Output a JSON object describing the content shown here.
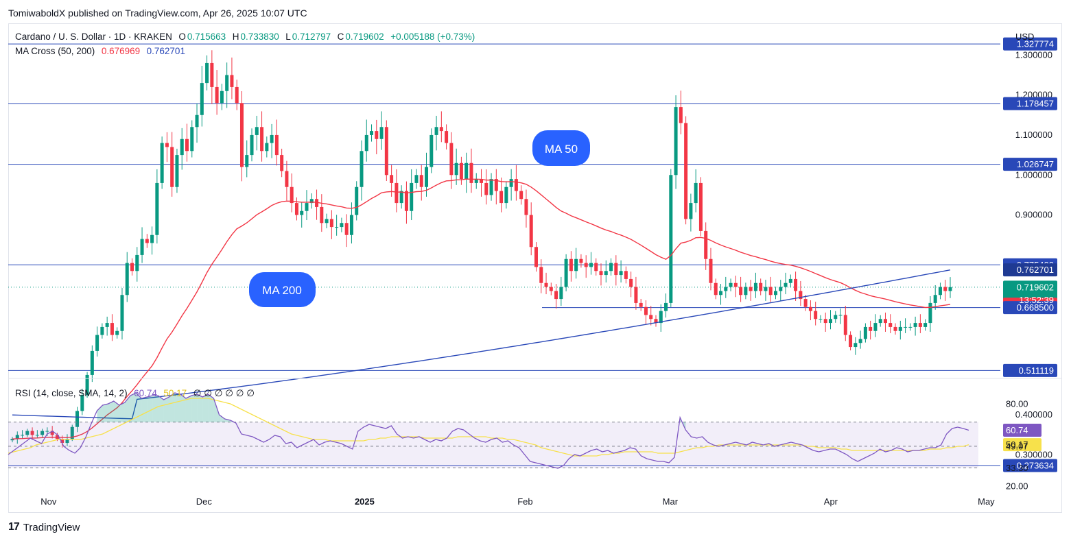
{
  "header": {
    "published": "TomiwaboldX published on TradingView.com, Apr 26, 2025 10:07 UTC"
  },
  "legend": {
    "symbol": "Cardano / U. S. Dollar · 1D · KRAKEN",
    "o_label": "O",
    "o": "0.715663",
    "h_label": "H",
    "h": "0.733830",
    "l_label": "L",
    "l": "0.712797",
    "c_label": "C",
    "c": "0.719602",
    "change": "+0.005188 (+0.73%)",
    "ma_label": "MA Cross (50, 200)",
    "ma50": "0.676969",
    "ma200": "0.762701"
  },
  "rsi_legend": {
    "label": "RSI (14, close, SMA, 14, 2)",
    "rsi": "60.74",
    "sma": "50.17",
    "empties": [
      "∅",
      "∅",
      "∅",
      "∅",
      "∅",
      "∅",
      "∅",
      "∅",
      "∅",
      "∅",
      "∅",
      "∅",
      "∅",
      "∅",
      "∅"
    ]
  },
  "currency": "USD",
  "annotations": {
    "ma50": "MA 50",
    "ma200": "MA 200"
  },
  "countdown": "13:52:39",
  "brand": {
    "mark": "17",
    "name": "TradingView"
  },
  "colors": {
    "up": "#089981",
    "down": "#f23645",
    "ma50": "#f23645",
    "ma200": "#2948b8",
    "hline": "#2948b8",
    "rsi": "#7e57c2",
    "rsi_sma": "#f7e14b",
    "badge": "#2962ff"
  },
  "chart_data": {
    "type": "candlestick",
    "y_ticks": [
      "1.300000",
      "1.200000",
      "1.100000",
      "1.000000",
      "0.900000",
      "0.400000",
      "0.300000"
    ],
    "y_tick_values": [
      1.3,
      1.2,
      1.1,
      1.0,
      0.9,
      0.4,
      0.3
    ],
    "price_labels": [
      {
        "text": "1.327774",
        "value": 1.327774,
        "bg": "#2948b8"
      },
      {
        "text": "1.178457",
        "value": 1.178457,
        "bg": "#2948b8"
      },
      {
        "text": "1.026747",
        "value": 1.026747,
        "bg": "#2948b8"
      },
      {
        "text": "0.775400",
        "value": 0.7754,
        "bg": "#2948b8"
      },
      {
        "text": "0.762701",
        "value": 0.762701,
        "bg": "#1f3a93"
      },
      {
        "text": "0.719602",
        "value": 0.719602,
        "bg": "#089981"
      },
      {
        "text": "0.676969",
        "value": 0.676969,
        "bg": "#f23645"
      },
      {
        "text": "0.668500",
        "value": 0.6685,
        "bg": "#2948b8"
      },
      {
        "text": "0.511119",
        "value": 0.511119,
        "bg": "#2948b8"
      },
      {
        "text": "0.273634",
        "value": 0.273634,
        "bg": "#2948b8"
      }
    ],
    "horizontal_levels": [
      1.327774,
      1.178457,
      1.026747,
      0.7754,
      0.511119,
      0.273634
    ],
    "partial_level": 0.6685,
    "x_labels": [
      "Nov",
      "Dec",
      "2025",
      "Feb",
      "Mar",
      "Apr",
      "May"
    ],
    "x_label_dates": [
      "2024-11-01",
      "2024-12-01",
      "2025-01-01",
      "2025-02-01",
      "2025-03-01",
      "2025-04-01",
      "2025-05-01"
    ],
    "date_range": [
      "2024-10-25",
      "2025-04-26"
    ],
    "closes": [
      0.34,
      0.35,
      0.35,
      0.36,
      0.35,
      0.35,
      0.36,
      0.36,
      0.35,
      0.34,
      0.33,
      0.34,
      0.37,
      0.41,
      0.45,
      0.5,
      0.56,
      0.6,
      0.62,
      0.63,
      0.6,
      0.61,
      0.7,
      0.78,
      0.76,
      0.8,
      0.84,
      0.83,
      0.85,
      0.98,
      1.08,
      1.07,
      0.97,
      1.05,
      1.09,
      1.06,
      1.12,
      1.15,
      1.23,
      1.28,
      1.22,
      1.18,
      1.21,
      1.25,
      1.22,
      1.18,
      1.02,
      1.05,
      1.1,
      1.12,
      1.06,
      1.08,
      1.1,
      1.05,
      1.01,
      0.97,
      0.93,
      0.9,
      0.91,
      0.93,
      0.94,
      0.92,
      0.88,
      0.89,
      0.87,
      0.87,
      0.88,
      0.85,
      0.9,
      0.97,
      1.06,
      1.1,
      1.11,
      1.09,
      1.12,
      1.0,
      0.98,
      0.93,
      0.96,
      0.91,
      0.98,
      1.0,
      0.97,
      1.02,
      1.1,
      1.12,
      1.11,
      1.08,
      1.0,
      1.03,
      0.99,
      1.03,
      0.98,
      0.99,
      0.98,
      0.95,
      0.99,
      0.96,
      0.93,
      0.97,
      0.99,
      0.96,
      0.94,
      0.9,
      0.82,
      0.77,
      0.73,
      0.72,
      0.71,
      0.69,
      0.72,
      0.79,
      0.76,
      0.79,
      0.78,
      0.77,
      0.78,
      0.76,
      0.75,
      0.76,
      0.78,
      0.75,
      0.76,
      0.74,
      0.72,
      0.68,
      0.67,
      0.65,
      0.64,
      0.63,
      0.66,
      0.68,
      1.0,
      1.17,
      1.13,
      0.89,
      0.93,
      0.98,
      0.86,
      0.79,
      0.73,
      0.7,
      0.71,
      0.72,
      0.73,
      0.72,
      0.7,
      0.72,
      0.71,
      0.73,
      0.71,
      0.72,
      0.7,
      0.71,
      0.72,
      0.73,
      0.74,
      0.71,
      0.69,
      0.67,
      0.66,
      0.64,
      0.64,
      0.63,
      0.64,
      0.65,
      0.65,
      0.6,
      0.57,
      0.58,
      0.59,
      0.62,
      0.61,
      0.63,
      0.64,
      0.63,
      0.62,
      0.61,
      0.62,
      0.62,
      0.62,
      0.63,
      0.62,
      0.63,
      0.68,
      0.7,
      0.72,
      0.71,
      0.719602
    ],
    "ma50_start": 0.34,
    "ma200": {
      "from": 0.4,
      "to": 0.762701
    },
    "rsi_panel": {
      "ticks": [
        "80.00",
        "60.74",
        "50.17",
        "49.07",
        "33.30",
        "20.00"
      ],
      "tick_values": [
        80,
        60.74,
        50.17,
        49.07,
        33.3,
        20
      ],
      "band": [
        33.3,
        66.7
      ],
      "mid": 49.07,
      "last_rsi": 60.74,
      "last_sma": 50.17,
      "rsi": [
        43,
        46,
        49,
        52,
        55,
        53,
        51,
        58,
        60,
        57,
        49,
        46,
        44,
        48,
        56,
        66,
        75,
        79,
        80,
        82,
        79,
        81,
        86,
        88,
        84,
        85,
        86,
        86,
        83,
        85,
        88,
        87,
        84,
        86,
        87,
        85,
        87,
        84,
        72,
        69,
        68,
        66,
        58,
        57,
        56,
        54,
        52,
        54,
        57,
        56,
        51,
        52,
        48,
        50,
        52,
        54,
        50,
        52,
        53,
        52,
        51,
        49,
        47,
        60,
        63,
        65,
        64,
        63,
        62,
        64,
        58,
        55,
        56,
        55,
        56,
        54,
        52,
        54,
        53,
        55,
        60,
        62,
        61,
        58,
        55,
        53,
        52,
        54,
        55,
        52,
        53,
        50,
        48,
        43,
        38,
        37,
        36,
        35,
        34,
        33,
        35,
        40,
        43,
        42,
        44,
        46,
        47,
        45,
        46,
        44,
        45,
        46,
        48,
        47,
        42,
        40,
        39,
        38,
        38,
        37,
        41,
        70,
        61,
        56,
        55,
        56,
        52,
        50,
        49,
        50,
        51,
        52,
        51,
        50,
        52,
        51,
        50,
        51,
        49,
        50,
        51,
        52,
        51,
        50,
        48,
        46,
        45,
        46,
        47,
        47,
        45,
        43,
        40,
        38,
        40,
        42,
        44,
        47,
        45,
        46,
        48,
        47,
        45,
        46,
        46,
        47,
        48,
        48,
        50,
        58,
        62,
        63,
        62,
        60.74
      ],
      "sma": [
        44,
        45,
        46,
        47,
        48,
        50,
        51,
        52,
        53,
        54,
        54,
        54,
        54,
        54,
        55,
        56,
        57,
        58,
        60,
        62,
        64,
        66,
        68,
        70,
        72,
        74,
        76,
        78,
        79,
        80,
        81,
        82,
        83,
        84,
        84,
        84,
        84,
        83,
        82,
        81,
        80,
        78,
        76,
        74,
        72,
        70,
        68,
        66,
        64,
        62,
        60,
        58,
        57,
        56,
        55,
        54,
        54,
        54,
        53,
        53,
        53,
        53,
        53,
        53,
        53,
        54,
        54,
        55,
        55,
        56,
        56,
        56,
        56,
        56,
        56,
        55,
        55,
        55,
        55,
        55,
        55,
        56,
        56,
        56,
        56,
        56,
        56,
        55,
        55,
        55,
        54,
        54,
        53,
        52,
        51,
        50,
        48,
        47,
        46,
        45,
        44,
        43,
        42,
        42,
        42,
        42,
        42,
        43,
        43,
        44,
        44,
        45,
        45,
        45,
        45,
        45,
        45,
        44,
        44,
        44,
        44,
        45,
        46,
        47,
        48,
        48,
        49,
        49,
        50,
        50,
        50,
        50,
        50,
        50,
        50,
        50,
        50,
        50,
        50,
        50,
        50,
        50,
        50,
        50,
        49,
        49,
        48,
        48,
        48,
        48,
        47,
        47,
        46,
        46,
        46,
        46,
        46,
        46,
        46,
        46,
        46,
        46,
        46,
        46,
        46,
        46,
        47,
        47,
        47,
        48,
        48,
        49,
        49,
        50.17
      ]
    }
  }
}
